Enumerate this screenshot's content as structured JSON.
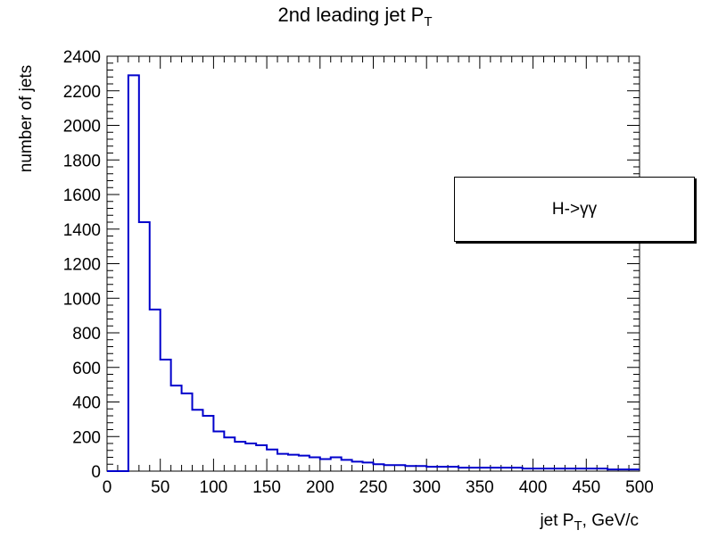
{
  "chart_data": {
    "type": "bar",
    "title_main": "2nd leading jet P",
    "title_sub": "T",
    "xlabel_main": "jet P",
    "xlabel_sub": "T",
    "xlabel_rest": ", GeV/c",
    "ylabel": "number of jets",
    "xlim": [
      0,
      500
    ],
    "ylim": [
      0,
      2400
    ],
    "xticks": [
      0,
      50,
      100,
      150,
      200,
      250,
      300,
      350,
      400,
      450,
      500
    ],
    "yticks": [
      0,
      200,
      400,
      600,
      800,
      1000,
      1200,
      1400,
      1600,
      1800,
      2000,
      2200,
      2400
    ],
    "bin_width": 10,
    "x_start": 0,
    "values": [
      0,
      0,
      2290,
      1440,
      935,
      645,
      495,
      450,
      355,
      320,
      230,
      195,
      170,
      160,
      150,
      125,
      100,
      95,
      90,
      80,
      70,
      80,
      65,
      55,
      50,
      40,
      35,
      35,
      30,
      30,
      25,
      25,
      25,
      20,
      20,
      20,
      20,
      20,
      20,
      15,
      15,
      15,
      15,
      15,
      15,
      15,
      15,
      10,
      10,
      10
    ],
    "line_color": "#0000cc",
    "legend": {
      "label": "H->γγ",
      "placement": "right"
    },
    "grid": false
  }
}
